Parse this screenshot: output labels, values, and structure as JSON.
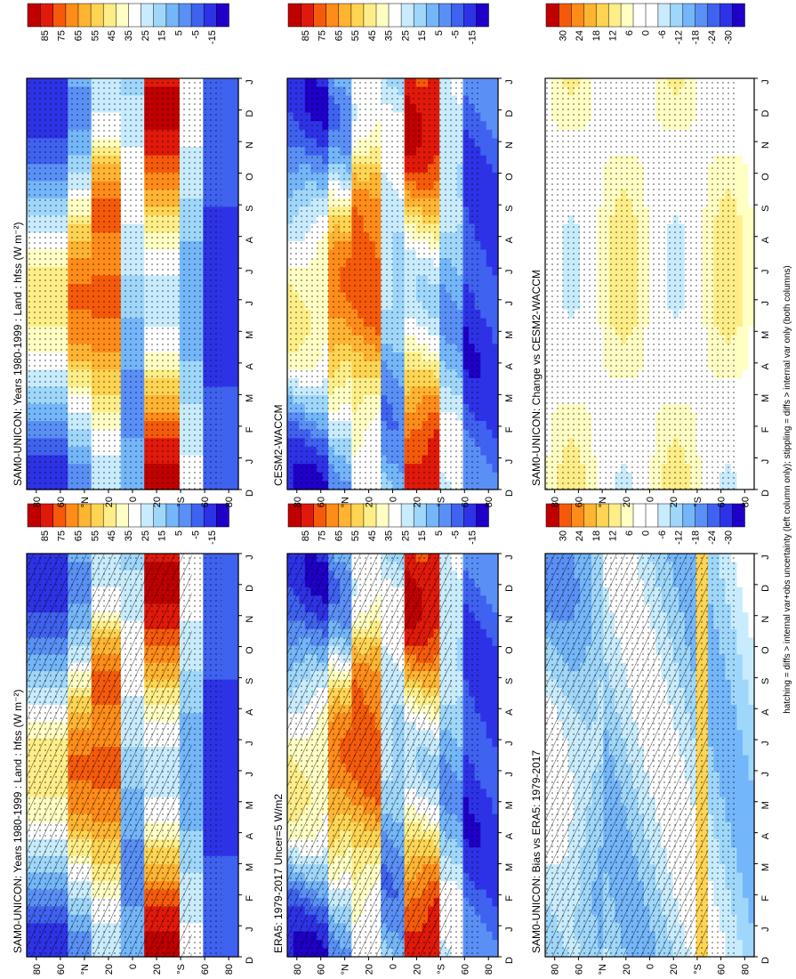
{
  "footnote": "hatching = diffs > internal var+obs uncertainty (left column only); stippling = diffs > internal var only (both columns)",
  "colors": {
    "abs_scale": [
      "#1e00c8",
      "#2e32e6",
      "#3f62f0",
      "#5a90f6",
      "#74b6fa",
      "#9fd7fb",
      "#c8ecfd",
      "#ffffff",
      "#ffffc4",
      "#ffee88",
      "#ffd452",
      "#ffb432",
      "#ff8c19",
      "#f55a0a",
      "#e0190a",
      "#c00000"
    ],
    "diff_scale": [
      "#1e00c8",
      "#2e32e6",
      "#3f62f0",
      "#5a90f6",
      "#74b6fa",
      "#9fd7fb",
      "#c8ecfd",
      "#ffffff",
      "#ffffff",
      "#ffffc4",
      "#ffee88",
      "#ffd452",
      "#ffb432",
      "#ff8c19",
      "#f55a0a",
      "#c00000"
    ]
  },
  "chart_data": [
    {
      "type": "heatmap",
      "title": "SAM0-UNICON: Years 1980-1999 : Land : hfss (W m⁻²)",
      "months": [
        "D",
        "J",
        "F",
        "M",
        "A",
        "M",
        "J",
        "J",
        "A",
        "S",
        "O",
        "N",
        "D",
        "J"
      ],
      "lat_ticks": [
        "80",
        "60",
        "°N",
        "20",
        "0",
        "20",
        "°S",
        "60",
        "80"
      ],
      "colorbar_ticks": [
        "85",
        "75",
        "65",
        "55",
        "45",
        "35",
        "25",
        "15",
        "5",
        "-5",
        "-15"
      ],
      "colorbar_range": [
        -20,
        90
      ],
      "hatching": true,
      "stippling": true
    },
    {
      "type": "heatmap",
      "title": "ERA5: 1979-2017 Uncer=5 W/m2",
      "months": [
        "D",
        "J",
        "F",
        "M",
        "A",
        "M",
        "J",
        "J",
        "A",
        "S",
        "O",
        "N",
        "D",
        "J"
      ],
      "lat_ticks": [
        "80",
        "60",
        "°N",
        "20",
        "0",
        "20",
        "°S",
        "60",
        "80"
      ],
      "colorbar_ticks": [
        "85",
        "75",
        "65",
        "55",
        "45",
        "35",
        "25",
        "15",
        "5",
        "-5",
        "-15"
      ],
      "colorbar_range": [
        -20,
        90
      ],
      "hatching": true,
      "stippling": true
    },
    {
      "type": "heatmap",
      "title": "SAM0-UNICON: Bias vs ERA5: 1979-2017",
      "months": [
        "D",
        "J",
        "F",
        "M",
        "A",
        "M",
        "J",
        "J",
        "A",
        "S",
        "O",
        "N",
        "D",
        "J"
      ],
      "lat_ticks": [
        "80",
        "60",
        "°N",
        "20",
        "0",
        "20",
        "°S",
        "60",
        "80"
      ],
      "colorbar_ticks": [
        "30",
        "24",
        "18",
        "12",
        "6",
        "0",
        "-6",
        "-12",
        "-18",
        "-24",
        "-30"
      ],
      "colorbar_range": [
        -33,
        33
      ],
      "hatching": true,
      "stippling": true
    },
    {
      "type": "heatmap",
      "title": "SAM0-UNICON: Years 1980-1999 : Land : hfss (W m⁻²)",
      "months": [
        "D",
        "J",
        "F",
        "M",
        "A",
        "M",
        "J",
        "J",
        "A",
        "S",
        "O",
        "N",
        "D",
        "J"
      ],
      "lat_ticks": [
        "80",
        "60",
        "°N",
        "20",
        "0",
        "20",
        "°S",
        "60",
        "80"
      ],
      "colorbar_ticks": [
        "85",
        "75",
        "65",
        "55",
        "45",
        "35",
        "25",
        "15",
        "5",
        "-5",
        "-15"
      ],
      "colorbar_range": [
        -20,
        90
      ],
      "hatching": false,
      "stippling": true
    },
    {
      "type": "heatmap",
      "title": "CESM2-WACCM",
      "months": [
        "D",
        "J",
        "F",
        "M",
        "A",
        "M",
        "J",
        "J",
        "A",
        "S",
        "O",
        "N",
        "D",
        "J"
      ],
      "lat_ticks": [
        "80",
        "60",
        "°N",
        "20",
        "0",
        "20",
        "°S",
        "60",
        "80"
      ],
      "colorbar_ticks": [
        "85",
        "75",
        "65",
        "55",
        "45",
        "35",
        "25",
        "15",
        "5",
        "-5",
        "-15"
      ],
      "colorbar_range": [
        -20,
        90
      ],
      "hatching": false,
      "stippling": true
    },
    {
      "type": "heatmap",
      "title": "SAM0-UNICON: Change vs CESM2-WACCM",
      "months": [
        "D",
        "J",
        "F",
        "M",
        "A",
        "M",
        "J",
        "J",
        "A",
        "S",
        "O",
        "N",
        "D",
        "J"
      ],
      "lat_ticks": [
        "80",
        "60",
        "°N",
        "20",
        "0",
        "20",
        "°S",
        "60",
        "80"
      ],
      "colorbar_ticks": [
        "30",
        "24",
        "18",
        "12",
        "6",
        "0",
        "-6",
        "-12",
        "-18",
        "-24",
        "-30"
      ],
      "colorbar_range": [
        -33,
        33
      ],
      "hatching": false,
      "stippling": true
    }
  ]
}
